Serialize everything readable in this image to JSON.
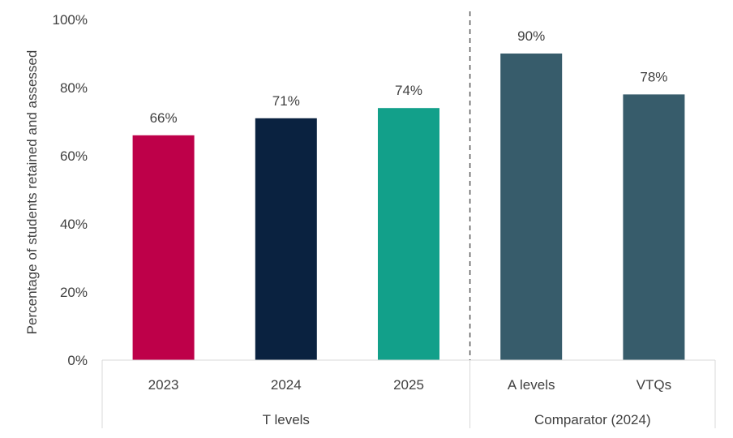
{
  "chart_data": {
    "type": "bar",
    "title": "",
    "ylabel": "Percentage of students retained and assessed",
    "xlabel": "",
    "ylim": [
      0,
      100
    ],
    "yticks": [
      0,
      20,
      40,
      60,
      80,
      100
    ],
    "ytick_labels": [
      "0%",
      "20%",
      "40%",
      "60%",
      "80%",
      "100%"
    ],
    "grid": false,
    "categories": [
      "2023",
      "2024",
      "2025",
      "A levels",
      "VTQs"
    ],
    "values": [
      66,
      71,
      74,
      90,
      78
    ],
    "value_labels": [
      "66%",
      "71%",
      "74%",
      "90%",
      "78%"
    ],
    "colors": [
      "#BE0049",
      "#0A2240",
      "#12A08A",
      "#375C6B",
      "#375C6B"
    ],
    "groups": [
      {
        "label": "T levels",
        "categories": [
          "2023",
          "2024",
          "2025"
        ]
      },
      {
        "label": "Comparator (2024)",
        "categories": [
          "A levels",
          "VTQs"
        ]
      }
    ]
  }
}
